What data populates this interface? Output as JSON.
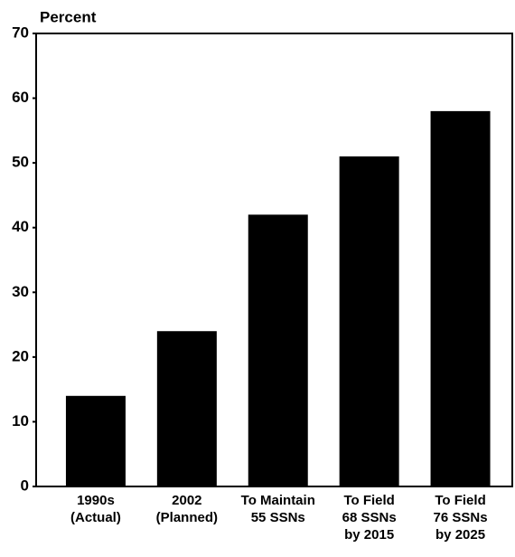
{
  "chart_data": {
    "type": "bar",
    "y_label": "Percent",
    "categories": [
      [
        "1990s",
        "(Actual)"
      ],
      [
        "2002",
        "(Planned)"
      ],
      [
        "To Maintain",
        "55 SSNs"
      ],
      [
        "To Field",
        "68 SSNs",
        "by 2015"
      ],
      [
        "To Field",
        "76 SSNs",
        "by 2025"
      ]
    ],
    "values": [
      14,
      24,
      42,
      51,
      58
    ],
    "color": "#000000",
    "ylim": [
      0,
      70
    ],
    "yticks": [
      0,
      10,
      20,
      30,
      40,
      50,
      60,
      70
    ],
    "grid": false
  }
}
